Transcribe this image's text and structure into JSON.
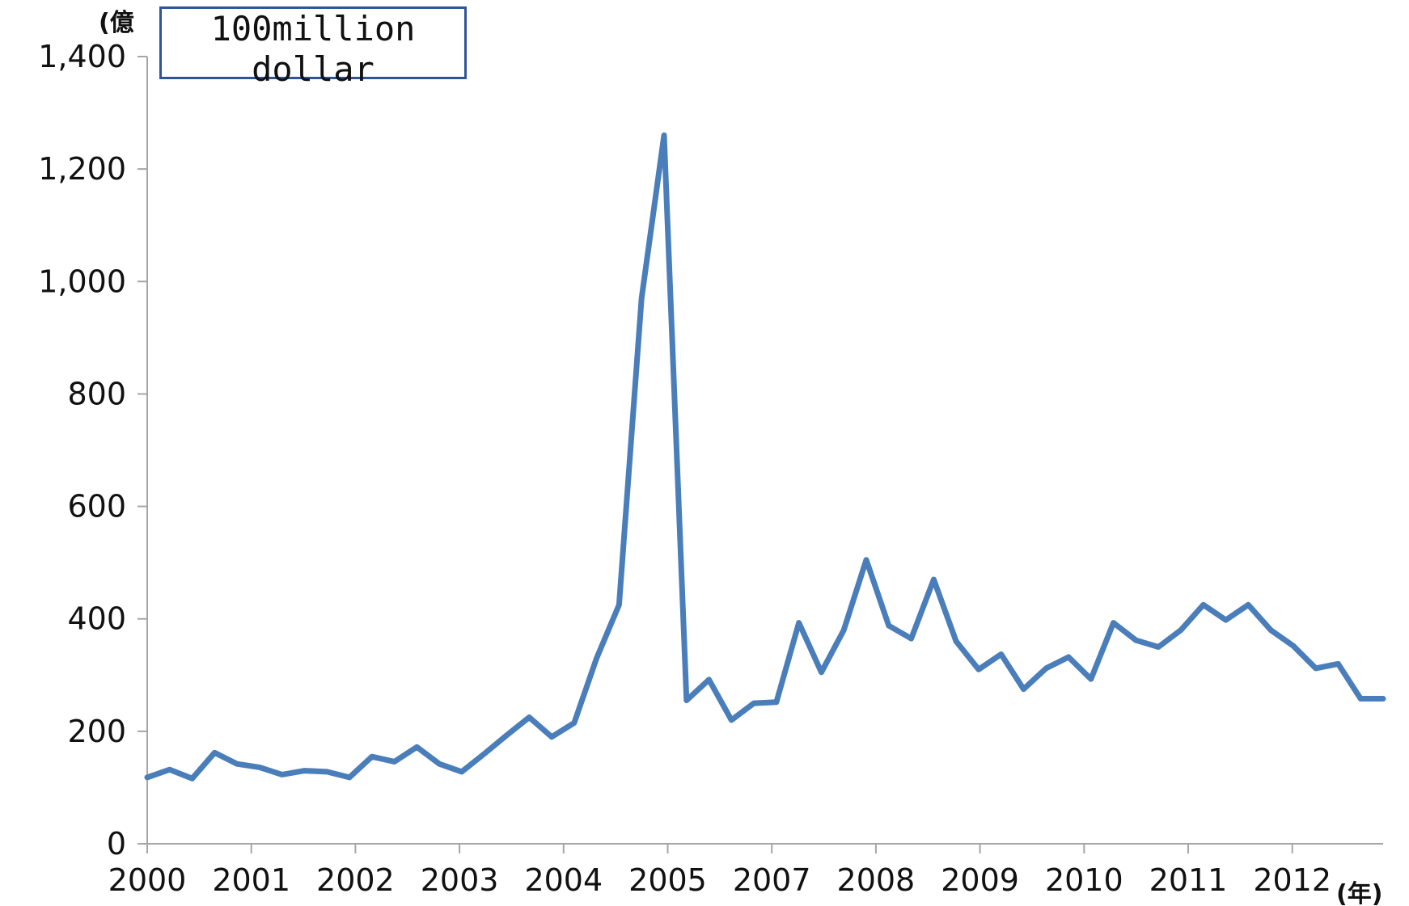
{
  "chart_data": {
    "type": "line",
    "y_unit_label": "(億",
    "x_unit_label": "(年)",
    "annotation": "100million dollar",
    "ylim": [
      0,
      1400
    ],
    "yticks": [
      0,
      200,
      400,
      600,
      800,
      1000,
      1200,
      1400
    ],
    "ytick_labels": [
      "0",
      "200",
      "400",
      "600",
      "800",
      "1,000",
      "1,200",
      "1,400"
    ],
    "xtick_labels": [
      "2000",
      "2001",
      "2002",
      "2003",
      "2004",
      "2005",
      "2007",
      "2008",
      "2009",
      "2010",
      "2011",
      "2012"
    ],
    "grid": false,
    "colors": {
      "line": "#4a7ebb",
      "axis": "#a6a6a6"
    },
    "series": [
      {
        "values": [
          118,
          132,
          116,
          162,
          142,
          136,
          123,
          130,
          128,
          118,
          155,
          146,
          172,
          142,
          128,
          160,
          193,
          225,
          190,
          215,
          330,
          425,
          970,
          1260,
          255,
          292,
          220,
          250,
          252,
          393,
          305,
          380,
          505,
          388,
          365,
          470,
          360,
          310,
          337,
          275,
          312,
          332,
          293,
          393,
          362,
          350,
          380,
          425,
          398,
          425,
          380,
          352,
          312,
          320,
          258,
          258
        ]
      }
    ]
  }
}
